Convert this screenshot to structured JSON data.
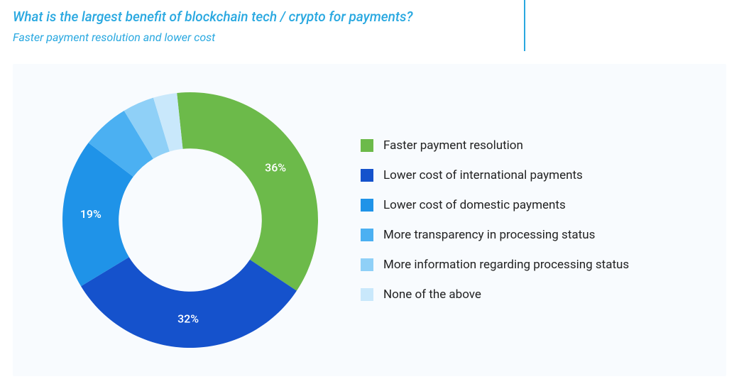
{
  "header": {
    "question": "What is the largest benefit of blockchain tech / crypto for payments?",
    "answer": "Faster payment resolution and lower cost",
    "rule_color": "#29a8e0",
    "text_color": "#29a8e0",
    "question_fontsize": 19,
    "answer_fontsize": 16
  },
  "chart": {
    "type": "donut",
    "background_color": "#f8fbfe",
    "inner_radius_ratio": 0.56,
    "outer_radius": 180,
    "start_angle_deg": -6,
    "label_color": "#ffffff",
    "label_fontsize": 16,
    "legend_fontsize": 17,
    "legend_text_color": "#222222",
    "slices": [
      {
        "label": "Faster payment resolution",
        "value": 36,
        "color": "#6cba4a",
        "show_pct": true
      },
      {
        "label": "Lower cost of international payments",
        "value": 32,
        "color": "#1552cc",
        "show_pct": true
      },
      {
        "label": "Lower cost of domestic payments",
        "value": 19,
        "color": "#1f93e8",
        "show_pct": true
      },
      {
        "label": "More transparency in processing status",
        "value": 6,
        "color": "#4bb0f2",
        "show_pct": false
      },
      {
        "label": "More information regarding processing status",
        "value": 4,
        "color": "#8fd0f7",
        "show_pct": false
      },
      {
        "label": "None of the above",
        "value": 3,
        "color": "#c9e8fb",
        "show_pct": false
      }
    ]
  }
}
